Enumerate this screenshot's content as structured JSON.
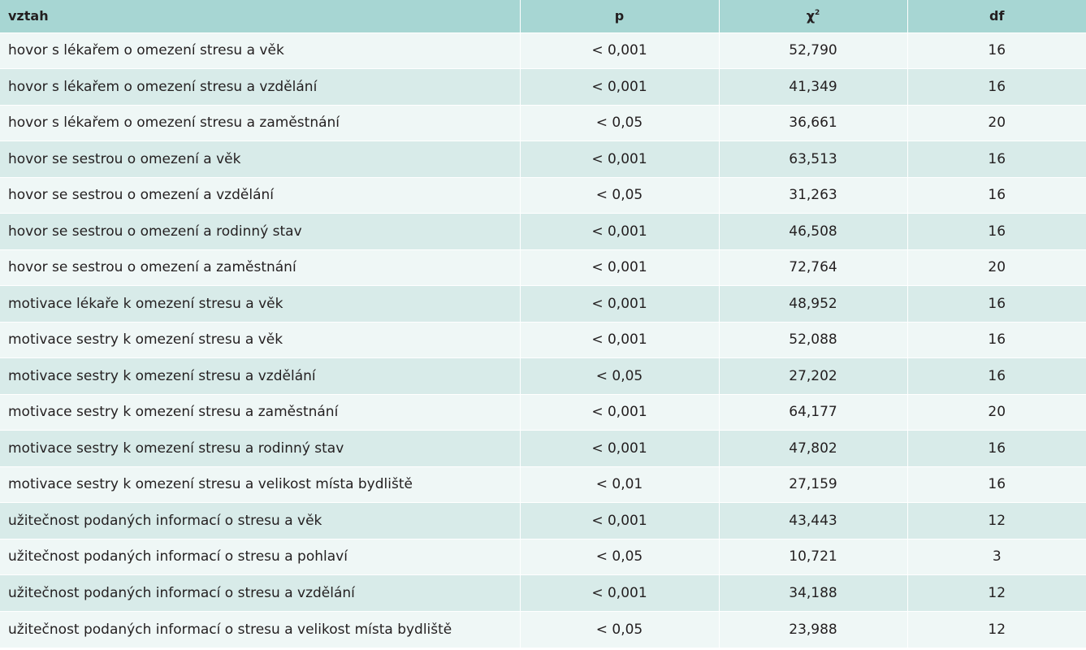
{
  "header": {
    "relation": "vztah",
    "p": "p",
    "chi": "χ",
    "chi_sup": "2",
    "df": "df"
  },
  "rows": [
    {
      "relation": "hovor s lékařem o omezení stresu a věk",
      "p": "< 0,001",
      "chi": "52,790",
      "df": "16"
    },
    {
      "relation": "hovor s lékařem o omezení stresu a vzdělání",
      "p": "< 0,001",
      "chi": "41,349",
      "df": "16"
    },
    {
      "relation": "hovor s lékařem o omezení stresu a zaměstnání",
      "p": "< 0,05",
      "chi": "36,661",
      "df": "20"
    },
    {
      "relation": "hovor se sestrou o omezení a věk",
      "p": "< 0,001",
      "chi": "63,513",
      "df": "16"
    },
    {
      "relation": "hovor se sestrou o omezení a vzdělání",
      "p": "< 0,05",
      "chi": "31,263",
      "df": "16"
    },
    {
      "relation": "hovor se sestrou o omezení a rodinný stav",
      "p": "< 0,001",
      "chi": "46,508",
      "df": "16"
    },
    {
      "relation": "hovor se sestrou o omezení a zaměstnání",
      "p": "< 0,001",
      "chi": "72,764",
      "df": "20"
    },
    {
      "relation": "motivace lékaře k omezení stresu a věk",
      "p": "< 0,001",
      "chi": "48,952",
      "df": "16"
    },
    {
      "relation": "motivace sestry k omezení stresu a věk",
      "p": "< 0,001",
      "chi": "52,088",
      "df": "16"
    },
    {
      "relation": "motivace sestry k omezení stresu a vzdělání",
      "p": "< 0,05",
      "chi": "27,202",
      "df": "16"
    },
    {
      "relation": "motivace sestry k omezení stresu a zaměstnání",
      "p": "< 0,001",
      "chi": "64,177",
      "df": "20"
    },
    {
      "relation": "motivace sestry k omezení stresu a rodinný stav",
      "p": "< 0,001",
      "chi": "47,802",
      "df": "16"
    },
    {
      "relation": "motivace sestry k omezení stresu a velikost místa bydliště",
      "p": "< 0,01",
      "chi": "27,159",
      "df": "16"
    },
    {
      "relation": "užitečnost podaných informací o stresu a věk",
      "p": "< 0,001",
      "chi": "43,443",
      "df": "12"
    },
    {
      "relation": "užitečnost podaných informací o stresu a pohlaví",
      "p": "< 0,05",
      "chi": "10,721",
      "df": "3"
    },
    {
      "relation": "užitečnost podaných informací o stresu a vzdělání",
      "p": "< 0,001",
      "chi": "34,188",
      "df": "12"
    },
    {
      "relation": "užitečnost podaných informací o stresu a velikost místa bydliště",
      "p": "< 0,05",
      "chi": "23,988",
      "df": "12"
    }
  ]
}
